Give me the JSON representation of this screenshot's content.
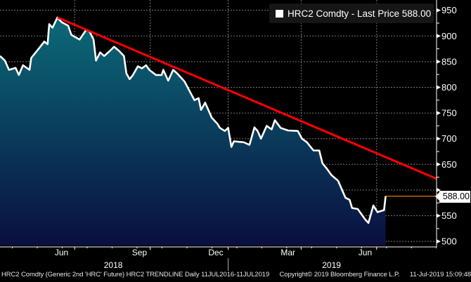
{
  "chart_data": {
    "type": "area",
    "title": "HRC2 Comdty - Last Price 588.00",
    "legend": [
      {
        "label": "HRC2 Comdty - Last Price 588.00",
        "color": "#ffffff",
        "placement": "top-right"
      }
    ],
    "x_unit": "days since mid-Mar 2018",
    "xlim": [
      0,
      532
    ],
    "ylim": [
      492,
      970
    ],
    "y_ticks": [
      500,
      550,
      600,
      650,
      700,
      750,
      800,
      850,
      900,
      950
    ],
    "y_tick_labels": [
      "500",
      "550",
      "600",
      "650",
      "700",
      "750",
      "800",
      "850",
      "900",
      "950"
    ],
    "x_month_labels": [
      {
        "label": "Jun",
        "day": 75
      },
      {
        "label": "Sep",
        "day": 170
      },
      {
        "label": "Dec",
        "day": 263
      },
      {
        "label": "Mar",
        "day": 351
      },
      {
        "label": "Jun",
        "day": 445
      }
    ],
    "x_year_labels": [
      {
        "label": "2018",
        "day": 138
      },
      {
        "label": "2019",
        "day": 404
      }
    ],
    "year_divider_day": 278,
    "vertical_grid_days": [
      91,
      183,
      278,
      367,
      459
    ],
    "grid": true,
    "series": [
      {
        "name": "HRC2 Comdty",
        "points": [
          [
            0,
            861
          ],
          [
            6,
            852
          ],
          [
            11,
            834
          ],
          [
            19,
            838
          ],
          [
            23,
            824
          ],
          [
            28,
            843
          ],
          [
            36,
            834
          ],
          [
            38,
            857
          ],
          [
            47,
            875
          ],
          [
            54,
            889
          ],
          [
            58,
            884
          ],
          [
            60,
            923
          ],
          [
            64,
            916
          ],
          [
            70,
            936
          ],
          [
            75,
            927
          ],
          [
            83,
            920
          ],
          [
            87,
            902
          ],
          [
            97,
            893
          ],
          [
            105,
            912
          ],
          [
            109,
            909
          ],
          [
            114,
            893
          ],
          [
            117,
            852
          ],
          [
            122,
            868
          ],
          [
            127,
            861
          ],
          [
            134,
            871
          ],
          [
            139,
            879
          ],
          [
            145,
            871
          ],
          [
            151,
            861
          ],
          [
            154,
            827
          ],
          [
            158,
            816
          ],
          [
            162,
            824
          ],
          [
            168,
            841
          ],
          [
            173,
            837
          ],
          [
            178,
            843
          ],
          [
            182,
            834
          ],
          [
            190,
            824
          ],
          [
            197,
            824
          ],
          [
            199,
            834
          ],
          [
            205,
            813
          ],
          [
            211,
            834
          ],
          [
            216,
            827
          ],
          [
            225,
            811
          ],
          [
            237,
            775
          ],
          [
            242,
            779
          ],
          [
            245,
            756
          ],
          [
            250,
            770
          ],
          [
            258,
            741
          ],
          [
            265,
            729
          ],
          [
            268,
            721
          ],
          [
            274,
            715
          ],
          [
            278,
            721
          ],
          [
            282,
            684
          ],
          [
            285,
            695
          ],
          [
            297,
            693
          ],
          [
            304,
            688
          ],
          [
            310,
            722
          ],
          [
            314,
            715
          ],
          [
            318,
            700
          ],
          [
            325,
            725
          ],
          [
            331,
            718
          ],
          [
            335,
            736
          ],
          [
            342,
            721
          ],
          [
            351,
            716
          ],
          [
            363,
            715
          ],
          [
            368,
            700
          ],
          [
            374,
            693
          ],
          [
            382,
            677
          ],
          [
            389,
            677
          ],
          [
            393,
            652
          ],
          [
            399,
            640
          ],
          [
            404,
            629
          ],
          [
            412,
            618
          ],
          [
            421,
            585
          ],
          [
            426,
            581
          ],
          [
            429,
            565
          ],
          [
            436,
            563
          ],
          [
            445,
            543
          ],
          [
            449,
            536
          ],
          [
            455,
            570
          ],
          [
            460,
            557
          ],
          [
            468,
            561
          ],
          [
            470,
            588
          ]
        ]
      }
    ],
    "trendline": {
      "name": "HRC2 TRENDLINE",
      "color": "#ff0000",
      "points": [
        [
          70,
          936
        ],
        [
          532,
          622
        ]
      ]
    },
    "last_price": {
      "value": 588.0,
      "label": "588.00",
      "color": "#ff8c00"
    }
  },
  "footer": {
    "left": "HRC2 Comdty (Generic 2nd 'HRC' Future) HRC2 TRENDLINE  Daily 11JUL2016-11JUL2019",
    "copyright": "Copyright© 2019 Bloomberg Finance L.P.",
    "timestamp": "11-Jul-2019 15:09:48"
  },
  "colors": {
    "fill_top": "#0b6a78",
    "fill_bottom": "#0a0f40",
    "line": "#ffffff",
    "grid": "#777777"
  }
}
